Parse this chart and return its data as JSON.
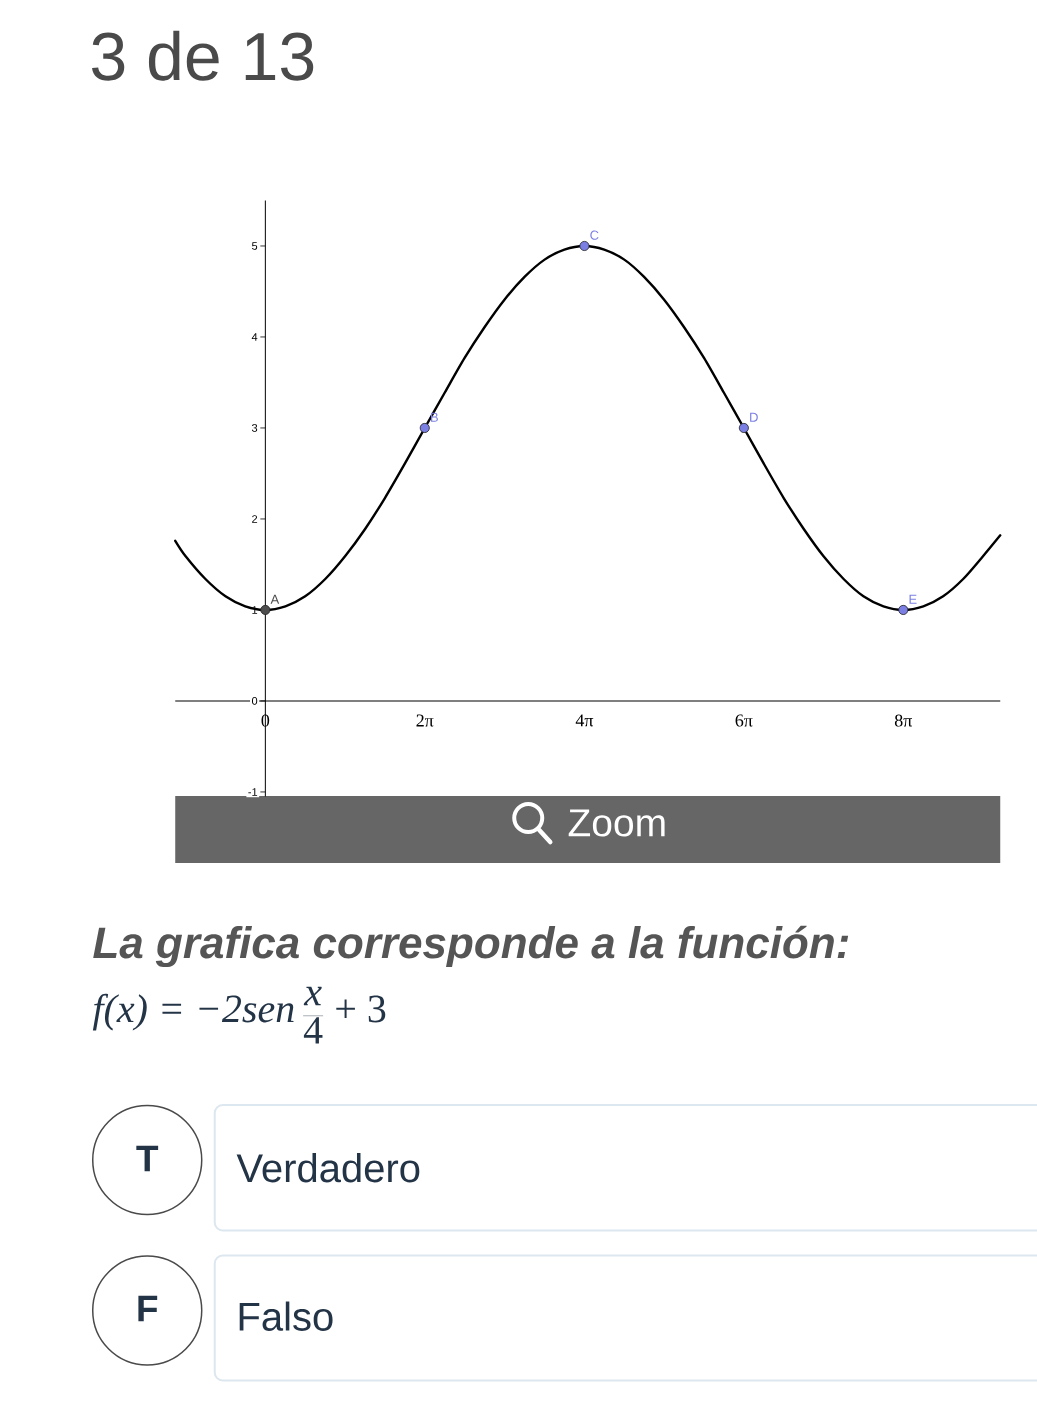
{
  "chart_data": {
    "type": "line",
    "xlim": [
      -3.55,
      28.95
    ],
    "ylim": [
      -1.05,
      5.5
    ],
    "xticks": [
      0,
      {
        "value": 6.28,
        "label": "2π"
      },
      {
        "value": 12.57,
        "label": "4π"
      },
      {
        "value": 18.85,
        "label": "6π"
      },
      {
        "value": 25.13,
        "label": "8π"
      }
    ],
    "yticks": [
      -1,
      0,
      1,
      2,
      3,
      4,
      5
    ],
    "series": [
      {
        "color": "#000000",
        "x": [
          -3.55,
          -3.14,
          -2.36,
          -1.57,
          -0.79,
          0,
          0.79,
          1.57,
          2.36,
          3.14,
          3.93,
          4.71,
          5.5,
          6.28,
          7.07,
          7.85,
          8.64,
          9.42,
          10.21,
          11.0,
          11.78,
          12.57,
          13.35,
          14.14,
          14.92,
          15.71,
          16.49,
          17.28,
          18.06,
          18.85,
          19.63,
          20.42,
          21.21,
          21.99,
          22.78,
          23.56,
          24.35,
          25.13,
          25.92,
          26.7,
          27.49,
          28.27,
          28.95
        ],
        "values": [
          1.76,
          1.59,
          1.34,
          1.15,
          1.04,
          1,
          1.04,
          1.15,
          1.34,
          1.59,
          1.89,
          2.23,
          2.61,
          3,
          3.39,
          3.77,
          4.11,
          4.41,
          4.66,
          4.85,
          4.96,
          5,
          4.96,
          4.85,
          4.66,
          4.41,
          4.11,
          3.77,
          3.39,
          3,
          2.61,
          2.23,
          1.89,
          1.59,
          1.34,
          1.15,
          1.04,
          1,
          1.04,
          1.15,
          1.34,
          1.59,
          1.82
        ]
      },
      {
        "type": "scatter",
        "marker": "circle",
        "x": [
          0,
          6.28,
          12.57,
          18.85,
          25.13
        ],
        "values": [
          1,
          3,
          5,
          3,
          1
        ],
        "colors": [
          "#4d4d4d",
          "#7b7fe3",
          "#7b7fe3",
          "#7b7fe3",
          "#7b7fe3"
        ]
      }
    ],
    "annotations": [
      "3 de 13",
      "Zoom",
      "La grafica corresponde a la función:",
      "f(x) = −2sen",
      "x",
      "4",
      "+ 3",
      "T",
      "Verdadero",
      "F",
      "Falso",
      {
        "text": "A",
        "x": 0,
        "y": 1
      },
      {
        "text": "B",
        "x": 6.28,
        "y": 3
      },
      {
        "text": "C",
        "x": 12.57,
        "y": 5
      },
      {
        "text": "D",
        "x": 18.85,
        "y": 3
      },
      {
        "text": "E",
        "x": 25.13,
        "y": 1
      }
    ]
  }
}
